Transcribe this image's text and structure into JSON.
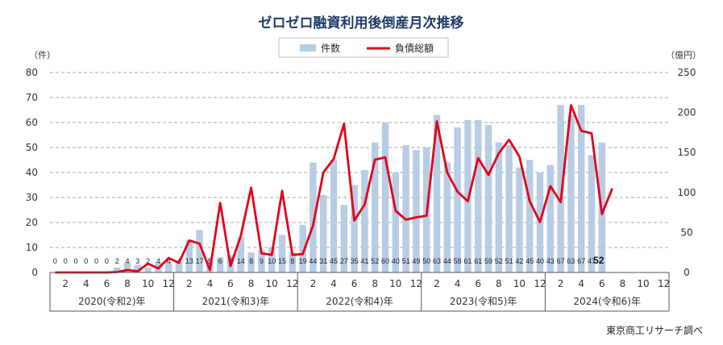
{
  "chart_data": {
    "type": "bar",
    "title": "ゼロゼロ融資利用後倒産月次推移",
    "y_left_unit": "（件）",
    "y_right_unit": "（億円）",
    "y_left_ticks": [
      "0",
      "10",
      "20",
      "30",
      "40",
      "50",
      "60",
      "70",
      "80"
    ],
    "y_right_ticks": [
      "0",
      "50",
      "100",
      "150",
      "200",
      "250"
    ],
    "ylim_left": [
      0,
      80
    ],
    "ylim_right": [
      0,
      250
    ],
    "grid": "dashed horizontal",
    "legend_position": "top-center",
    "month_tick_labels": [
      "2",
      "4",
      "6",
      "8",
      "10",
      "12",
      "2",
      "4",
      "6",
      "8",
      "10",
      "12",
      "2",
      "4",
      "6",
      "8",
      "10",
      "12",
      "2",
      "4",
      "6",
      "8",
      "10",
      "12",
      "2",
      "4",
      "6",
      "8",
      "10",
      "12"
    ],
    "years": [
      "2020(令和2)年",
      "2021(令和3)年",
      "2022(令和4)年",
      "2023(令和5)年",
      "2024(令和6)年"
    ],
    "categories": [
      "2020-01",
      "2020-02",
      "2020-03",
      "2020-04",
      "2020-05",
      "2020-06",
      "2020-07",
      "2020-08",
      "2020-09",
      "2020-10",
      "2020-11",
      "2020-12",
      "2021-01",
      "2021-02",
      "2021-03",
      "2021-04",
      "2021-05",
      "2021-06",
      "2021-07",
      "2021-08",
      "2021-09",
      "2021-10",
      "2021-11",
      "2021-12",
      "2022-01",
      "2022-02",
      "2022-03",
      "2022-04",
      "2022-05",
      "2022-06",
      "2022-07",
      "2022-08",
      "2022-09",
      "2022-10",
      "2022-11",
      "2022-12",
      "2023-01",
      "2023-02",
      "2023-03",
      "2023-04",
      "2023-05",
      "2023-06",
      "2023-07",
      "2023-08",
      "2023-09",
      "2023-10",
      "2023-11",
      "2023-12",
      "2024-01",
      "2024-02",
      "2024-03",
      "2024-04",
      "2024-05",
      "2024-06",
      "2024-07",
      "2024-08",
      "2024-09",
      "2024-10",
      "2024-11",
      "2024-12"
    ],
    "series": [
      {
        "name": "件数",
        "type": "bar",
        "axis": "left",
        "color": "#b8cce4",
        "values": [
          0,
          0,
          0,
          0,
          0,
          0,
          2,
          4,
          3,
          2,
          4,
          4,
          4,
          13,
          17,
          5,
          6,
          7,
          14,
          8,
          9,
          10,
          15,
          8,
          19,
          44,
          31,
          45,
          27,
          35,
          41,
          52,
          60,
          40,
          51,
          49,
          50,
          63,
          44,
          58,
          61,
          61,
          59,
          52,
          51,
          42,
          45,
          40,
          43,
          67,
          63,
          67,
          47,
          52,
          null,
          null,
          null,
          null,
          null,
          null
        ]
      },
      {
        "name": "負債総額",
        "type": "line",
        "axis": "right",
        "color": "#e2001a",
        "values": [
          0,
          0,
          0,
          0,
          0,
          0,
          0.5,
          3,
          1.5,
          11,
          5,
          18,
          12,
          40,
          36,
          3,
          87,
          8,
          46,
          106,
          24,
          22,
          102,
          22,
          23,
          59,
          125,
          142,
          186,
          65,
          85,
          141,
          144,
          77,
          66,
          69,
          71,
          189,
          125,
          101,
          89,
          143,
          122,
          149,
          166,
          145,
          89,
          63,
          108,
          88,
          209,
          177,
          174,
          73,
          105,
          null,
          null,
          null,
          null,
          null
        ]
      }
    ],
    "source": "東京商工リサーチ調べ"
  }
}
